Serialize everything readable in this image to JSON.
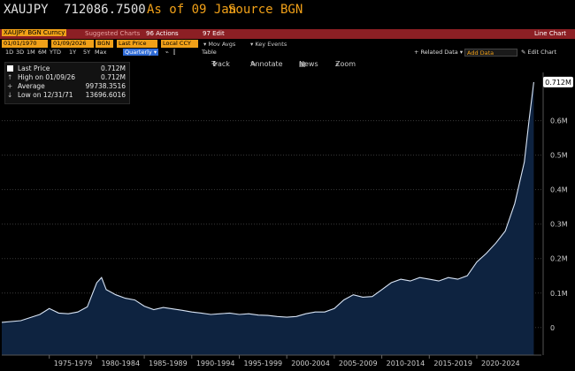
{
  "header": {
    "ticker": "XAUJPY",
    "value": "712086.7500",
    "as_of_text": "As of 09 Jan",
    "source_text": "Source BGN"
  },
  "function_bar": {
    "security": "XAUJPY BGN Curncy",
    "suggested": "Suggested Charts",
    "actions": "96 Actions",
    "edit": "97 Edit",
    "chart_type": "Line Chart"
  },
  "controls": {
    "start_date": "01/01/1970",
    "end_date": "01/09/2026",
    "source": "BGN",
    "field": "Last Price",
    "currency": "Local CCY",
    "mov_avgs": "Mov Avgs",
    "key_events": "Key Events",
    "ranges": [
      "1D",
      "3D",
      "1M",
      "6M",
      "YTD",
      "1Y",
      "5Y",
      "Max"
    ],
    "periodicity": "Quarterly",
    "table_label": "Table",
    "related_data": "Related Data",
    "add_data": "Add Data",
    "edit_chart": "Edit Chart"
  },
  "tools": {
    "track": "Track",
    "annotate": "Annotate",
    "news": "News",
    "zoom": "Zoom"
  },
  "legend": {
    "last_price_label": "Last Price",
    "last_price_value": "0.712M",
    "high_label": "High on 01/09/26",
    "high_value": "0.712M",
    "avg_label": "Average",
    "avg_value": "99738.3516",
    "low_label": "Low on 12/31/71",
    "low_value": "13696.6016"
  },
  "colors": {
    "area_fill": "#0e2340",
    "line": "#d8e4f5",
    "accent_orange": "#f0a018",
    "function_bar": "#8c1f24"
  },
  "chart_data": {
    "type": "area",
    "series": [
      {
        "name": "Last Price",
        "x": [
          1970,
          1972,
          1974,
          1975,
          1976,
          1977,
          1978,
          1979,
          1980,
          1980.5,
          1981,
          1982,
          1983,
          1984,
          1985,
          1986,
          1987,
          1988,
          1989,
          1990,
          1991,
          1992,
          1993,
          1994,
          1995,
          1996,
          1997,
          1998,
          1999,
          2000,
          2001,
          2002,
          2003,
          2004,
          2005,
          2006,
          2007,
          2008,
          2009,
          2010,
          2011,
          2012,
          2013,
          2014,
          2015,
          2016,
          2017,
          2018,
          2019,
          2020,
          2021,
          2022,
          2023,
          2024,
          2024.5,
          2025,
          2025.5,
          2026
        ],
        "y": [
          15000,
          20000,
          38000,
          55000,
          42000,
          40000,
          45000,
          60000,
          130000,
          145000,
          110000,
          95000,
          85000,
          80000,
          62000,
          52000,
          58000,
          54000,
          50000,
          45000,
          42000,
          38000,
          40000,
          42000,
          38000,
          40000,
          36000,
          35000,
          32000,
          30000,
          32000,
          40000,
          45000,
          45000,
          55000,
          80000,
          95000,
          88000,
          90000,
          110000,
          130000,
          140000,
          135000,
          145000,
          140000,
          135000,
          145000,
          140000,
          150000,
          190000,
          215000,
          245000,
          280000,
          360000,
          420000,
          480000,
          600000,
          712000
        ]
      }
    ],
    "ylabel_ticks": [
      "0",
      "0.1M",
      "0.2M",
      "0.3M",
      "0.4M",
      "0.5M",
      "0.6M"
    ],
    "yvalues": [
      0,
      100000,
      200000,
      300000,
      400000,
      500000,
      600000
    ],
    "ylim": [
      -80000,
      740000
    ],
    "x_tick_labels": [
      "1975-1979",
      "1980-1984",
      "1985-1989",
      "1990-1994",
      "1995-1999",
      "2000-2004",
      "2005-2009",
      "2010-2014",
      "2015-2019",
      "2020-2024"
    ],
    "x_tick_centers": [
      1977.5,
      1982.5,
      1987.5,
      1992.5,
      1997.5,
      2002.5,
      2007.5,
      2012.5,
      2017.5,
      2022.5
    ],
    "xlim": [
      1970,
      2026.8
    ],
    "last_label": "0.712M",
    "grid": true
  }
}
